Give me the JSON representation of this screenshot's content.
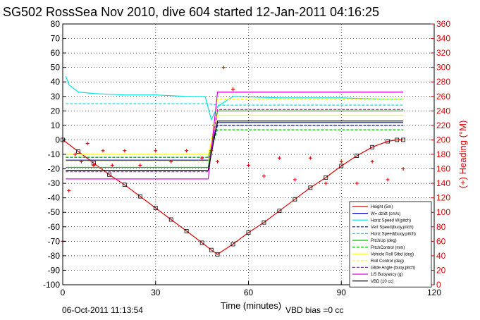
{
  "chart_data": {
    "type": "line",
    "title": "SG502 RossSea Nov 2010, dive 604 started 12-Jan-2011 04:16:25",
    "xlabel": "Time (minutes)",
    "ylabel_right": "(+) Heading (°M)",
    "footer_left": "06-Oct-2011 11:13:54",
    "footer_right": "VBD bias =0 cc",
    "xlim": [
      0,
      120
    ],
    "ylim": [
      -100,
      80
    ],
    "ylim_right": [
      0,
      360
    ],
    "x_ticks": [
      "0",
      "30",
      "60",
      "90",
      "120"
    ],
    "y_ticks": [
      "80",
      "70",
      "60",
      "50",
      "40",
      "30",
      "20",
      "10",
      "0",
      "-10",
      "-20",
      "-30",
      "-40",
      "-50",
      "-60",
      "-70",
      "-80",
      "-90",
      "-100"
    ],
    "y_ticks_right": [
      "360",
      "340",
      "320",
      "300",
      "280",
      "260",
      "240",
      "220",
      "200",
      "180",
      "160",
      "140",
      "120",
      "100",
      "80",
      "60",
      "40",
      "20",
      "0"
    ],
    "grid": true,
    "legend_position": "bottom-right",
    "colors": {
      "height": "#e00000",
      "w": "#0000c0",
      "horiz": "#00e0e0",
      "pitch": "#00c000",
      "roll": "#ffff00",
      "buoy": "#e000e0",
      "vbd": "#000000",
      "heading": "#e00000"
    },
    "series": [
      {
        "name": "Height (5m)",
        "x": [
          0,
          5,
          10,
          15,
          20,
          25,
          30,
          35,
          40,
          45,
          48,
          50,
          55,
          60,
          65,
          70,
          75,
          80,
          85,
          90,
          95,
          100,
          105,
          108,
          110
        ],
        "y": [
          0,
          -8,
          -16,
          -24,
          -31,
          -39,
          -47,
          -55,
          -63,
          -71,
          -76,
          -79,
          -72,
          -64,
          -57,
          -49,
          -41,
          -33,
          -26,
          -18,
          -11,
          -5,
          -1,
          0,
          0
        ]
      },
      {
        "name": "W= dz/dt (cm/s)",
        "x": [
          1,
          5,
          47,
          50,
          110
        ],
        "y": [
          -14,
          -14,
          -14,
          12,
          12
        ]
      },
      {
        "name": "Horiz Speed W(pitch)",
        "x": [
          1,
          2,
          5,
          10,
          20,
          30,
          40,
          46,
          48,
          50,
          55,
          70,
          90,
          105,
          110
        ],
        "y": [
          44,
          38,
          33,
          32,
          31,
          31,
          30,
          30,
          14,
          23,
          30,
          29,
          29,
          28,
          28
        ]
      },
      {
        "name": "Vert Speed(buoy,pitch)",
        "x": [
          1,
          5,
          47,
          50,
          110
        ],
        "y": [
          -12,
          -12,
          -12,
          10,
          10
        ]
      },
      {
        "name": "Horiz Speed(buoy,pitch)",
        "x": [
          1,
          5,
          47,
          50,
          110
        ],
        "y": [
          25,
          25,
          25,
          24,
          24
        ]
      },
      {
        "name": "PitchUp (deg)",
        "x": [
          1,
          5,
          47,
          50,
          110
        ],
        "y": [
          -19,
          -19,
          -19,
          20,
          20
        ]
      },
      {
        "name": "PitchControl (mm)",
        "x": [
          1,
          5,
          47,
          50,
          110
        ],
        "y": [
          -12,
          -12,
          -12,
          7,
          7
        ]
      },
      {
        "name": "Vehicle Roll Stbd (deg)",
        "x": [
          1,
          5,
          47,
          50,
          110
        ],
        "y": [
          -10,
          -10,
          -10,
          17,
          17
        ]
      },
      {
        "name": "Roll Control (deg)",
        "x": [
          1,
          5,
          47,
          50,
          110
        ],
        "y": [
          -15,
          -15,
          -15,
          28,
          28
        ]
      },
      {
        "name": "Glide Angle (buoy,pitch)",
        "x": [
          1,
          5,
          47,
          50,
          110
        ],
        "y": [
          -22,
          -22,
          -22,
          21,
          21
        ]
      },
      {
        "name": "1/5 Buoyancy (g)",
        "x": [
          1,
          5,
          47,
          50,
          110
        ],
        "y": [
          -27,
          -27,
          -27,
          33,
          33
        ]
      },
      {
        "name": "VBD (10 cc)",
        "x": [
          1,
          5,
          47,
          50,
          110
        ],
        "y": [
          -21,
          -21,
          -21,
          13,
          13
        ]
      }
    ],
    "heading_series": {
      "x": [
        0,
        2,
        4,
        6,
        8,
        10,
        13,
        16,
        20,
        25,
        30,
        35,
        40,
        45,
        48,
        50,
        52,
        55,
        60,
        65,
        70,
        75,
        80,
        85,
        90,
        95,
        100,
        105,
        110
      ],
      "y": [
        60,
        130,
        180,
        170,
        195,
        165,
        185,
        165,
        185,
        165,
        185,
        170,
        185,
        175,
        185,
        170,
        300,
        270,
        165,
        150,
        175,
        145,
        175,
        140,
        170,
        140,
        170,
        145,
        160
      ]
    }
  }
}
